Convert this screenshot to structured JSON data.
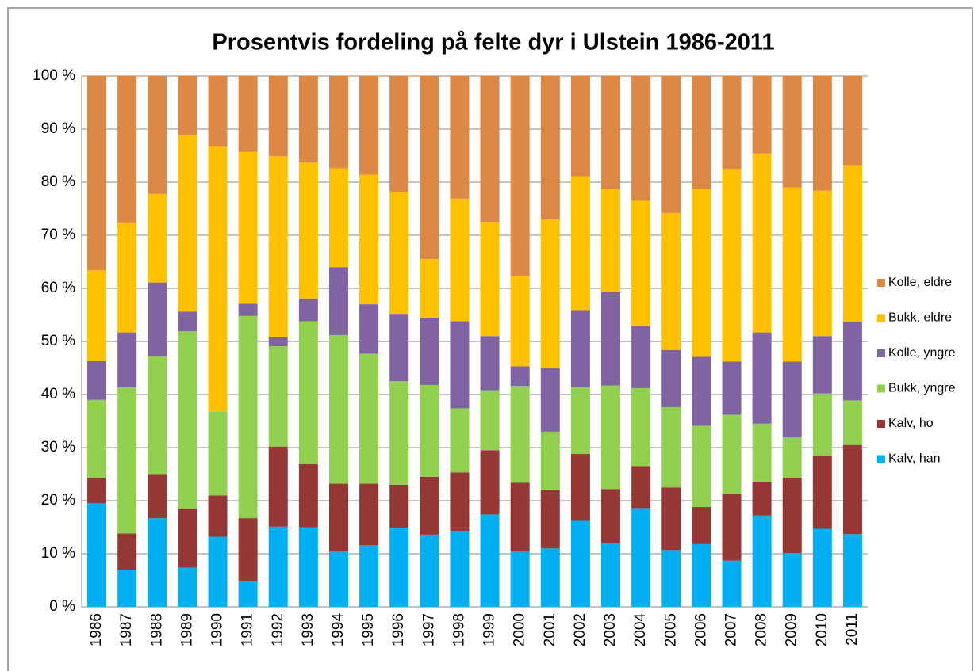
{
  "chart_data": {
    "type": "bar",
    "stacked": true,
    "title": "Prosentvis fordeling på felte dyr i Ulstein 1986-2011",
    "categories": [
      "1986",
      "1987",
      "1988",
      "1989",
      "1990",
      "1991",
      "1992",
      "1993",
      "1994",
      "1995",
      "1996",
      "1997",
      "1998",
      "1999",
      "2000",
      "2001",
      "2002",
      "2003",
      "2004",
      "2005",
      "2006",
      "2007",
      "2008",
      "2009",
      "2010",
      "2011"
    ],
    "series": [
      {
        "name": "Kalv, han",
        "color": "#00b0f0",
        "values": [
          19.5,
          6.9,
          16.7,
          7.4,
          13.2,
          4.8,
          15.1,
          15,
          10.4,
          11.6,
          14.9,
          13.6,
          14.3,
          17.4,
          10.4,
          11,
          16.2,
          12,
          18.6,
          10.7,
          11.8,
          8.7,
          17.2,
          10.1,
          14.7,
          13.7
        ]
      },
      {
        "name": "Kalv, ho",
        "color": "#953735",
        "values": [
          4.8,
          6.9,
          8.3,
          11.1,
          7.8,
          11.9,
          15.1,
          11.9,
          12.8,
          11.6,
          8.1,
          10.9,
          11,
          12.1,
          13,
          11,
          12.6,
          10.2,
          7.9,
          11.8,
          7,
          12.5,
          6.4,
          14.2,
          13.7,
          16.8
        ]
      },
      {
        "name": "Bukk, yngre",
        "color": "#92d050",
        "values": [
          14.7,
          27.6,
          22.2,
          33.4,
          15.8,
          38.1,
          18.9,
          26.9,
          28,
          24.5,
          19.5,
          17.3,
          12.1,
          11.3,
          18.2,
          11,
          12.6,
          19.5,
          14.7,
          15.1,
          15.3,
          15,
          10.9,
          7.6,
          11.8,
          8.4
        ]
      },
      {
        "name": "Kolle, yngre",
        "color": "#8064a2",
        "values": [
          7.3,
          10.3,
          13.9,
          3.7,
          0,
          2.3,
          1.8,
          4.3,
          12.8,
          9.3,
          12.7,
          12.7,
          16.4,
          10.2,
          3.7,
          12,
          14.5,
          17.6,
          11.7,
          10.8,
          13,
          10,
          17.2,
          14.3,
          10.8,
          14.8
        ]
      },
      {
        "name": "Bukk, eldre",
        "color": "#ffc000",
        "values": [
          17.1,
          20.7,
          16.7,
          33.3,
          50,
          28.6,
          34,
          25.6,
          18.6,
          24.4,
          23,
          11,
          23.1,
          21.5,
          17,
          28,
          25.2,
          19.4,
          23.6,
          25.8,
          31.7,
          36.3,
          33.7,
          32.8,
          27.4,
          29.5
        ]
      },
      {
        "name": "Kolle, eldre",
        "color": "#dd8844",
        "values": [
          36.6,
          27.6,
          22.2,
          11.1,
          13.2,
          14.3,
          15.1,
          16.3,
          17.4,
          18.6,
          21.8,
          34.5,
          23.1,
          27.5,
          37.7,
          27,
          18.9,
          21.3,
          23.5,
          25.8,
          21.2,
          17.5,
          14.6,
          21,
          21.6,
          16.8
        ]
      }
    ],
    "ylim": [
      0,
      100
    ],
    "yticks": [
      {
        "value": 0,
        "label": "0 %"
      },
      {
        "value": 10,
        "label": "10 %"
      },
      {
        "value": 20,
        "label": "20 %"
      },
      {
        "value": 30,
        "label": "30 %"
      },
      {
        "value": 40,
        "label": "40 %"
      },
      {
        "value": 50,
        "label": "50 %"
      },
      {
        "value": 60,
        "label": "60 %"
      },
      {
        "value": 70,
        "label": "70 %"
      },
      {
        "value": 80,
        "label": "80 %"
      },
      {
        "value": 90,
        "label": "90 %"
      },
      {
        "value": 100,
        "label": "100 %"
      }
    ],
    "grid": true,
    "legend": "right"
  }
}
